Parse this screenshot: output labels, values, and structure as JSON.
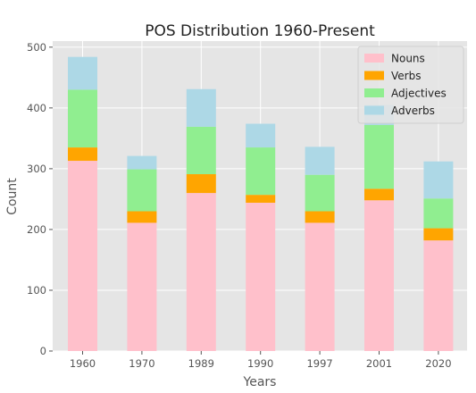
{
  "chart_data": {
    "type": "bar",
    "stacked": true,
    "title": "POS Distribution 1960-Present",
    "xlabel": "Years",
    "ylabel": "Count",
    "categories": [
      "1960",
      "1970",
      "1989",
      "1990",
      "1997",
      "2001",
      "2020"
    ],
    "ylim": [
      0,
      510
    ],
    "yticks": [
      0,
      100,
      200,
      300,
      400,
      500
    ],
    "grid": true,
    "legend_position": "top-right",
    "series": [
      {
        "name": "Nouns",
        "color": "#ffc0cb",
        "values": [
          313,
          211,
          260,
          244,
          211,
          248,
          182
        ]
      },
      {
        "name": "Verbs",
        "color": "#ffa500",
        "values": [
          22,
          19,
          31,
          13,
          19,
          19,
          20
        ]
      },
      {
        "name": "Adjectives",
        "color": "#90ee90",
        "values": [
          95,
          69,
          78,
          78,
          60,
          105,
          49
        ]
      },
      {
        "name": "Adverbs",
        "color": "#add8e6",
        "values": [
          54,
          22,
          62,
          39,
          46,
          33,
          61
        ]
      }
    ]
  }
}
